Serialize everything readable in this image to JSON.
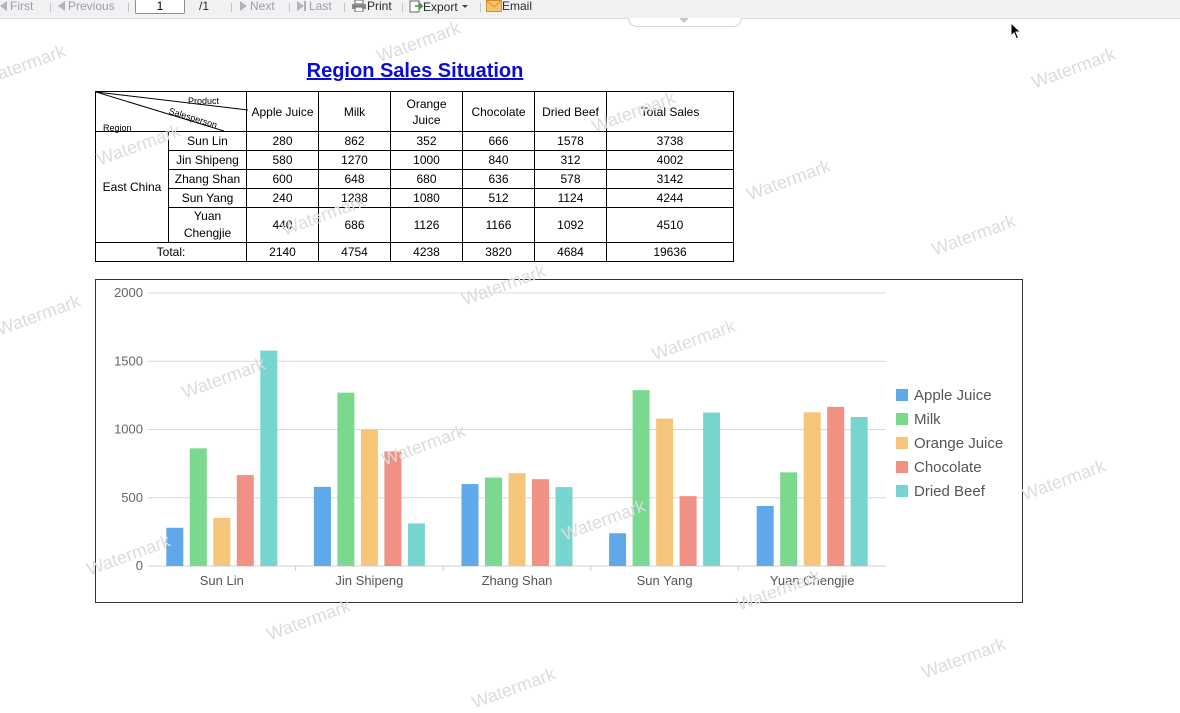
{
  "toolbar": {
    "first": "First",
    "previous": "Previous",
    "page_value": "1",
    "page_total": "/1",
    "next": "Next",
    "last": "Last",
    "print": "Print",
    "export": "Export",
    "email": "Email"
  },
  "watermark": "Watermark",
  "report": {
    "title": "Region Sales Situation",
    "header": {
      "diag_product": "Product",
      "diag_salesperson": "Salesperson",
      "diag_region": "Region",
      "columns": [
        "Apple Juice",
        "Milk",
        "Orange Juice",
        "Chocolate",
        "Dried Beef",
        "Total Sales"
      ]
    },
    "region": "East China",
    "rows": [
      {
        "name": "Sun Lin",
        "values": [
          "280",
          "862",
          "352",
          "666",
          "1578",
          "3738"
        ]
      },
      {
        "name": "Jin Shipeng",
        "values": [
          "580",
          "1270",
          "1000",
          "840",
          "312",
          "4002"
        ]
      },
      {
        "name": "Zhang Shan",
        "values": [
          "600",
          "648",
          "680",
          "636",
          "578",
          "3142"
        ]
      },
      {
        "name": "Sun Yang",
        "values": [
          "240",
          "1288",
          "1080",
          "512",
          "1124",
          "4244"
        ]
      },
      {
        "name": "Yuan Chengjie",
        "values": [
          "440",
          "686",
          "1126",
          "1166",
          "1092",
          "4510"
        ]
      }
    ],
    "total_label": "Total:",
    "totals": [
      "2140",
      "4754",
      "4238",
      "3820",
      "4684",
      "19636"
    ]
  },
  "chart_data": {
    "type": "bar",
    "categories": [
      "Sun Lin",
      "Jin Shipeng",
      "Zhang Shan",
      "Sun Yang",
      "Yuan Chengjie"
    ],
    "series": [
      {
        "name": "Apple Juice",
        "color": "#5fa9ea",
        "values": [
          280,
          580,
          600,
          240,
          440
        ]
      },
      {
        "name": "Milk",
        "color": "#79d98f",
        "values": [
          862,
          1270,
          648,
          1288,
          686
        ]
      },
      {
        "name": "Orange Juice",
        "color": "#f5c679",
        "values": [
          352,
          1000,
          680,
          1080,
          1126
        ]
      },
      {
        "name": "Chocolate",
        "color": "#f19183",
        "values": [
          666,
          840,
          636,
          512,
          1166
        ]
      },
      {
        "name": "Dried Beef",
        "color": "#76d5cf",
        "values": [
          1578,
          312,
          578,
          1124,
          1092
        ]
      }
    ],
    "yticks": [
      0,
      500,
      1000,
      1500,
      2000
    ],
    "ylim": [
      0,
      2000
    ],
    "grid": true,
    "legend": "right"
  }
}
